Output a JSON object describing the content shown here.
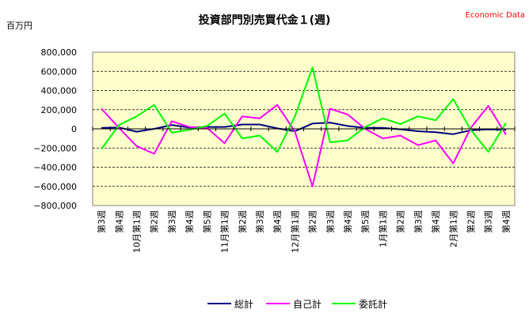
{
  "header": {
    "title": "投資部門別売買代金１(週)",
    "source": "Economic Data",
    "unit": "百万円"
  },
  "chart_data": {
    "type": "line",
    "title": "投資部門別売買代金１(週)",
    "ylabel": "百万円",
    "ylim": [
      -800000,
      800000
    ],
    "yticks": [
      800000,
      600000,
      400000,
      200000,
      0,
      -200000,
      -400000,
      -600000,
      -800000
    ],
    "ytick_labels": [
      "800,000",
      "600,000",
      "400,000",
      "200,000",
      "0",
      "−200,000",
      "−400,000",
      "−600,000",
      "−800,000"
    ],
    "grid": true,
    "legend_position": "bottom",
    "categories": [
      "第3週",
      "第4週",
      "10月第1週",
      "第2週",
      "第3週",
      "第4週",
      "第5週",
      "11月第1週",
      "第2週",
      "第3週",
      "第4週",
      "12月第1週",
      "第2週",
      "第3週",
      "第4週",
      "第5週",
      "1月第1週",
      "第2週",
      "第3週",
      "第4週",
      "2月第1週",
      "第2週",
      "第3週",
      "第4週"
    ],
    "series": [
      {
        "name": "総計",
        "color": "#000080",
        "values": [
          10000,
          15000,
          -30000,
          0,
          40000,
          15000,
          20000,
          20000,
          45000,
          45000,
          5000,
          -25000,
          55000,
          65000,
          30000,
          10000,
          10000,
          -5000,
          -25000,
          -35000,
          -55000,
          -15000,
          -5000,
          -10000
        ]
      },
      {
        "name": "自己計",
        "color": "#ff00ff",
        "values": [
          210000,
          10000,
          -180000,
          -260000,
          80000,
          20000,
          10000,
          -150000,
          130000,
          110000,
          250000,
          -30000,
          -600000,
          210000,
          150000,
          0,
          -100000,
          -70000,
          -170000,
          -120000,
          -360000,
          10000,
          240000,
          -60000
        ]
      },
      {
        "name": "委託計",
        "color": "#00ff00",
        "values": [
          -210000,
          40000,
          130000,
          250000,
          -40000,
          -10000,
          30000,
          160000,
          -100000,
          -70000,
          -240000,
          130000,
          640000,
          -140000,
          -120000,
          20000,
          110000,
          50000,
          130000,
          90000,
          310000,
          -10000,
          -240000,
          60000
        ]
      }
    ]
  }
}
